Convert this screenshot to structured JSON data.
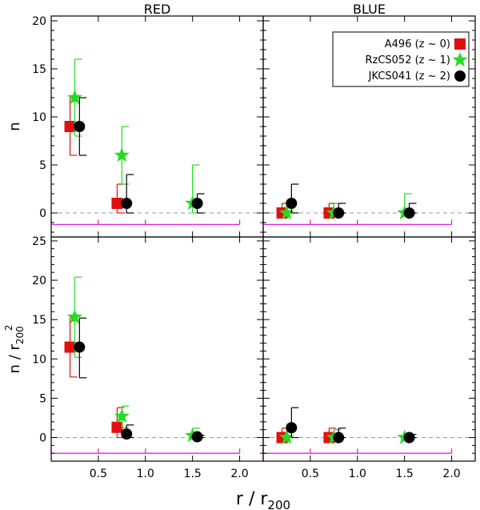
{
  "chart_data": {
    "type": "scatter",
    "column_titles": [
      "RED",
      "BLUE"
    ],
    "xlabel": "r / r_200",
    "xlabel_main": "r",
    "xlabel_sep": "/",
    "xlabel_var": "r",
    "xlabel_sub": "200",
    "xlim": [
      0,
      2.25
    ],
    "xticks": [
      0.5,
      1.0,
      1.5,
      2.0
    ],
    "xtick_labels": [
      "0.5",
      "1.0",
      "1.5",
      "2.0"
    ],
    "bin_edges": [
      0,
      0.5,
      1.0,
      2.0
    ],
    "legend": {
      "placement": "top-right",
      "entries": [
        {
          "label": "A496 (z ~ 0)",
          "color": "#e01010",
          "marker": "square"
        },
        {
          "label": "RzCS052 (z ~ 1)",
          "color": "#22dd22",
          "marker": "star"
        },
        {
          "label": "JKCS041 (z ~ 2)",
          "color": "#000000",
          "marker": "circle"
        }
      ]
    },
    "rows": [
      {
        "ylabel": "n",
        "ylabel_parts": {
          "main": "n"
        },
        "ylim": [
          -2.5,
          20.5
        ],
        "yticks": [
          0,
          5,
          10,
          15,
          20
        ],
        "ytick_labels": [
          "0",
          "5",
          "10",
          "15",
          "20"
        ],
        "bin_y": -1.2,
        "panels": [
          {
            "name": "RED",
            "series": [
              {
                "name": "A496 (z ~ 0)",
                "x": [
                  0.2,
                  0.7
                ],
                "y": [
                  9,
                  1
                ],
                "ylo": [
                  6,
                  0
                ],
                "yhi": [
                  12,
                  3
                ]
              },
              {
                "name": "RzCS052 (z ~ 1)",
                "x": [
                  0.25,
                  0.75,
                  1.5
                ],
                "y": [
                  12,
                  6,
                  1
                ],
                "ylo": [
                  8,
                  3,
                  0
                ],
                "yhi": [
                  16,
                  9,
                  5
                ]
              },
              {
                "name": "JKCS041 (z ~ 2)",
                "x": [
                  0.3,
                  0.8,
                  1.55
                ],
                "y": [
                  9,
                  1,
                  1
                ],
                "ylo": [
                  6,
                  0,
                  0
                ],
                "yhi": [
                  12,
                  4,
                  2
                ]
              }
            ]
          },
          {
            "name": "BLUE",
            "series": [
              {
                "name": "A496 (z ~ 0)",
                "x": [
                  0.2,
                  0.7
                ],
                "y": [
                  0,
                  0
                ],
                "ylo": [
                  0,
                  0
                ],
                "yhi": [
                  1,
                  1
                ]
              },
              {
                "name": "RzCS052 (z ~ 1)",
                "x": [
                  0.25,
                  0.75,
                  1.5
                ],
                "y": [
                  0,
                  0,
                  0
                ],
                "ylo": [
                  0,
                  0,
                  0
                ],
                "yhi": [
                  1,
                  1,
                  2
                ]
              },
              {
                "name": "JKCS041 (z ~ 2)",
                "x": [
                  0.3,
                  0.8,
                  1.55
                ],
                "y": [
                  1,
                  0,
                  0
                ],
                "ylo": [
                  0,
                  0,
                  0
                ],
                "yhi": [
                  3,
                  1,
                  1
                ]
              }
            ]
          }
        ]
      },
      {
        "ylabel": "n / r_200^2",
        "ylabel_parts": {
          "main": "n",
          "sep": "/",
          "var": "r",
          "sub": "200",
          "sup": "2"
        },
        "ylim": [
          -3,
          25.5
        ],
        "yticks": [
          0,
          5,
          10,
          15,
          20,
          25
        ],
        "ytick_labels": [
          "0",
          "5",
          "10",
          "15",
          "20",
          "25"
        ],
        "bin_y": -2.0,
        "panels": [
          {
            "name": "RED",
            "series": [
              {
                "name": "A496 (z ~ 0)",
                "x": [
                  0.2,
                  0.7
                ],
                "y": [
                  11.5,
                  1.3
                ],
                "ylo": [
                  7.7,
                  0
                ],
                "yhi": [
                  15.2,
                  3.8
                ]
              },
              {
                "name": "RzCS052 (z ~ 1)",
                "x": [
                  0.25,
                  0.75,
                  1.5
                ],
                "y": [
                  15.3,
                  2.7,
                  0.25
                ],
                "ylo": [
                  10.2,
                  1.3,
                  0
                ],
                "yhi": [
                  20.4,
                  4.0,
                  1.2
                ]
              },
              {
                "name": "JKCS041 (z ~ 2)",
                "x": [
                  0.3,
                  0.8,
                  1.55
                ],
                "y": [
                  11.5,
                  0.45,
                  0.1
                ],
                "ylo": [
                  7.6,
                  0,
                  0
                ],
                "yhi": [
                  15.2,
                  1.6,
                  0.3
                ]
              }
            ]
          },
          {
            "name": "BLUE",
            "series": [
              {
                "name": "A496 (z ~ 0)",
                "x": [
                  0.2,
                  0.7
                ],
                "y": [
                  0,
                  0
                ],
                "ylo": [
                  0,
                  0
                ],
                "yhi": [
                  1.2,
                  1.2
                ]
              },
              {
                "name": "RzCS052 (z ~ 1)",
                "x": [
                  0.25,
                  0.75,
                  1.5
                ],
                "y": [
                  0,
                  0,
                  0
                ],
                "ylo": [
                  0,
                  0,
                  0
                ],
                "yhi": [
                  1.2,
                  1.0,
                  0.4
                ]
              },
              {
                "name": "JKCS041 (z ~ 2)",
                "x": [
                  0.3,
                  0.8,
                  1.55
                ],
                "y": [
                  1.25,
                  0,
                  0
                ],
                "ylo": [
                  0,
                  0,
                  0
                ],
                "yhi": [
                  3.8,
                  1.2,
                  0.4
                ]
              }
            ]
          }
        ]
      }
    ]
  }
}
